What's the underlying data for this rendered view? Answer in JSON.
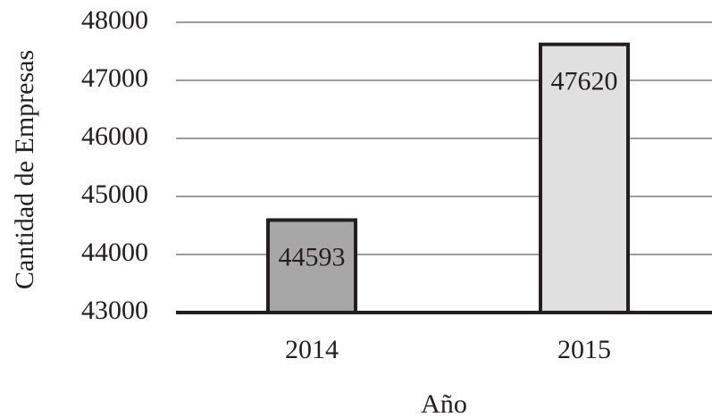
{
  "chart_data": {
    "type": "bar",
    "x_label": "Año",
    "y_label": "Cantidad de Empresas",
    "categories": [
      "2014",
      "2015"
    ],
    "values": [
      44593,
      47620
    ],
    "colors": [
      "#a7a7a7",
      "#e0e0e0"
    ],
    "ylim": [
      43000,
      48000
    ],
    "yticks": [
      43000,
      44000,
      45000,
      46000,
      47000,
      48000
    ],
    "grid": true,
    "data_labels": true
  }
}
